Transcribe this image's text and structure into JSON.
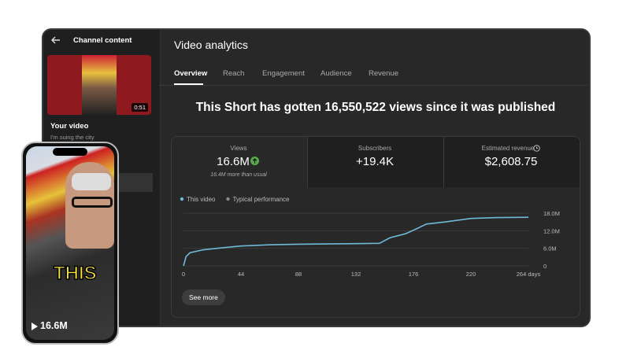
{
  "sidebar": {
    "title": "Channel content",
    "duration": "0:51",
    "section": "Your video",
    "video_title": "I'm suing the city"
  },
  "phone": {
    "caption": "THIS",
    "views": "16.6M"
  },
  "header": {
    "title": "Video analytics",
    "tabs": [
      "Overview",
      "Reach",
      "Engagement",
      "Audience",
      "Revenue"
    ]
  },
  "headline": "This Short has gotten 16,550,522 views since it was published",
  "metrics": [
    {
      "label": "Views",
      "value": "16.6M",
      "note": "16.4M more than usual"
    },
    {
      "label": "Subscribers",
      "value": "+19.4K"
    },
    {
      "label": "Estimated revenue",
      "value": "$2,608.75"
    }
  ],
  "button": "See more",
  "chart_data": {
    "type": "line",
    "legend": [
      {
        "name": "This video",
        "color": "#6fb8d8"
      },
      {
        "name": "Typical performance",
        "color": "#8a8a8a"
      }
    ],
    "x": [
      0,
      2,
      5,
      15,
      30,
      44,
      66,
      88,
      110,
      132,
      150,
      158,
      170,
      178,
      186,
      200,
      220,
      240,
      264
    ],
    "series": [
      {
        "name": "This video",
        "color": "#6fb8d8",
        "values": [
          0,
          3200000,
          4500000,
          5500000,
          6200000,
          6800000,
          7200000,
          7400000,
          7500000,
          7600000,
          7700000,
          9600000,
          11000000,
          12600000,
          14300000,
          15000000,
          16200000,
          16500000,
          16600000
        ]
      }
    ],
    "xlim": [
      0,
      264
    ],
    "xticks": [
      0,
      44,
      88,
      132,
      176,
      220,
      {
        "value": 264,
        "label": "264 days"
      }
    ],
    "ylim": [
      0,
      18000000
    ],
    "yticks": [
      0,
      {
        "value": 6000000,
        "label": "6.0M"
      },
      {
        "value": 12000000,
        "label": "12.0M"
      },
      {
        "value": 18000000,
        "label": "18.0M"
      }
    ],
    "grid": true
  }
}
